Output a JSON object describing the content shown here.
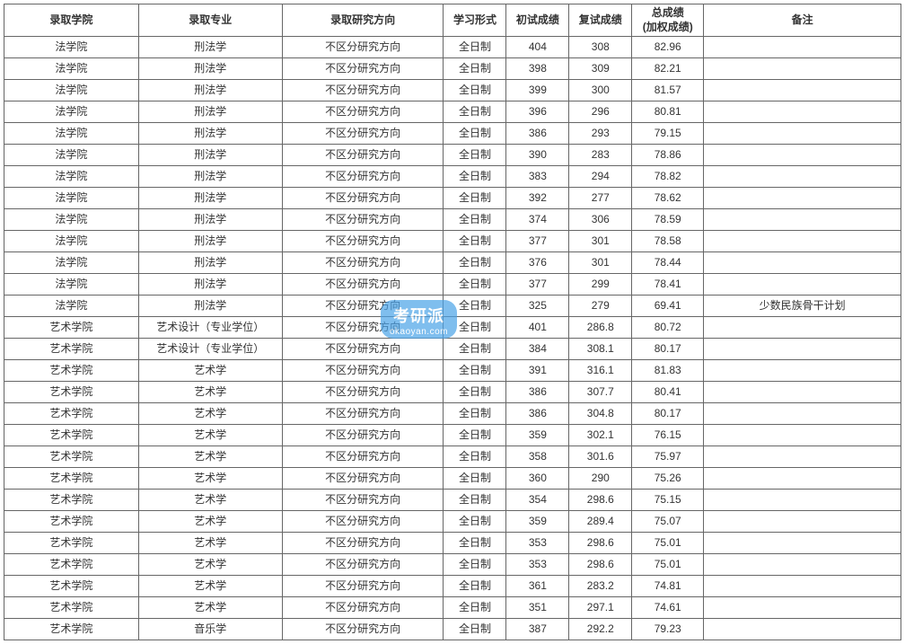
{
  "table": {
    "columns": [
      {
        "label": "录取学院",
        "class": "col-college"
      },
      {
        "label": "录取专业",
        "class": "col-major"
      },
      {
        "label": "录取研究方向",
        "class": "col-direction"
      },
      {
        "label": "学习形式",
        "class": "col-mode"
      },
      {
        "label": "初试成绩",
        "class": "col-score1"
      },
      {
        "label": "复试成绩",
        "class": "col-score2"
      },
      {
        "label": "总成绩",
        "sublabel": "(加权成绩)",
        "class": "col-total"
      },
      {
        "label": "备注",
        "class": "col-remark"
      }
    ],
    "rows": [
      [
        "法学院",
        "刑法学",
        "不区分研究方向",
        "全日制",
        "404",
        "308",
        "82.96",
        ""
      ],
      [
        "法学院",
        "刑法学",
        "不区分研究方向",
        "全日制",
        "398",
        "309",
        "82.21",
        ""
      ],
      [
        "法学院",
        "刑法学",
        "不区分研究方向",
        "全日制",
        "399",
        "300",
        "81.57",
        ""
      ],
      [
        "法学院",
        "刑法学",
        "不区分研究方向",
        "全日制",
        "396",
        "296",
        "80.81",
        ""
      ],
      [
        "法学院",
        "刑法学",
        "不区分研究方向",
        "全日制",
        "386",
        "293",
        "79.15",
        ""
      ],
      [
        "法学院",
        "刑法学",
        "不区分研究方向",
        "全日制",
        "390",
        "283",
        "78.86",
        ""
      ],
      [
        "法学院",
        "刑法学",
        "不区分研究方向",
        "全日制",
        "383",
        "294",
        "78.82",
        ""
      ],
      [
        "法学院",
        "刑法学",
        "不区分研究方向",
        "全日制",
        "392",
        "277",
        "78.62",
        ""
      ],
      [
        "法学院",
        "刑法学",
        "不区分研究方向",
        "全日制",
        "374",
        "306",
        "78.59",
        ""
      ],
      [
        "法学院",
        "刑法学",
        "不区分研究方向",
        "全日制",
        "377",
        "301",
        "78.58",
        ""
      ],
      [
        "法学院",
        "刑法学",
        "不区分研究方向",
        "全日制",
        "376",
        "301",
        "78.44",
        ""
      ],
      [
        "法学院",
        "刑法学",
        "不区分研究方向",
        "全日制",
        "377",
        "299",
        "78.41",
        ""
      ],
      [
        "法学院",
        "刑法学",
        "不区分研究方向",
        "全日制",
        "325",
        "279",
        "69.41",
        "少数民族骨干计划"
      ],
      [
        "艺术学院",
        "艺术设计（专业学位）",
        "不区分研究方向",
        "全日制",
        "401",
        "286.8",
        "80.72",
        ""
      ],
      [
        "艺术学院",
        "艺术设计（专业学位）",
        "不区分研究方向",
        "全日制",
        "384",
        "308.1",
        "80.17",
        ""
      ],
      [
        "艺术学院",
        "艺术学",
        "不区分研究方向",
        "全日制",
        "391",
        "316.1",
        "81.83",
        ""
      ],
      [
        "艺术学院",
        "艺术学",
        "不区分研究方向",
        "全日制",
        "386",
        "307.7",
        "80.41",
        ""
      ],
      [
        "艺术学院",
        "艺术学",
        "不区分研究方向",
        "全日制",
        "386",
        "304.8",
        "80.17",
        ""
      ],
      [
        "艺术学院",
        "艺术学",
        "不区分研究方向",
        "全日制",
        "359",
        "302.1",
        "76.15",
        ""
      ],
      [
        "艺术学院",
        "艺术学",
        "不区分研究方向",
        "全日制",
        "358",
        "301.6",
        "75.97",
        ""
      ],
      [
        "艺术学院",
        "艺术学",
        "不区分研究方向",
        "全日制",
        "360",
        "290",
        "75.26",
        ""
      ],
      [
        "艺术学院",
        "艺术学",
        "不区分研究方向",
        "全日制",
        "354",
        "298.6",
        "75.15",
        ""
      ],
      [
        "艺术学院",
        "艺术学",
        "不区分研究方向",
        "全日制",
        "359",
        "289.4",
        "75.07",
        ""
      ],
      [
        "艺术学院",
        "艺术学",
        "不区分研究方向",
        "全日制",
        "353",
        "298.6",
        "75.01",
        ""
      ],
      [
        "艺术学院",
        "艺术学",
        "不区分研究方向",
        "全日制",
        "353",
        "298.6",
        "75.01",
        ""
      ],
      [
        "艺术学院",
        "艺术学",
        "不区分研究方向",
        "全日制",
        "361",
        "283.2",
        "74.81",
        ""
      ],
      [
        "艺术学院",
        "艺术学",
        "不区分研究方向",
        "全日制",
        "351",
        "297.1",
        "74.61",
        ""
      ],
      [
        "艺术学院",
        "音乐学",
        "不区分研究方向",
        "全日制",
        "387",
        "292.2",
        "79.23",
        ""
      ]
    ],
    "border_color": "#666666",
    "text_color": "#333333",
    "background_color": "#ffffff",
    "font_size": 12
  },
  "watermark": {
    "main": "考研派",
    "sub": "okaoyan.com",
    "bg_color": "#4aa3e8",
    "text_color": "#ffffff"
  }
}
